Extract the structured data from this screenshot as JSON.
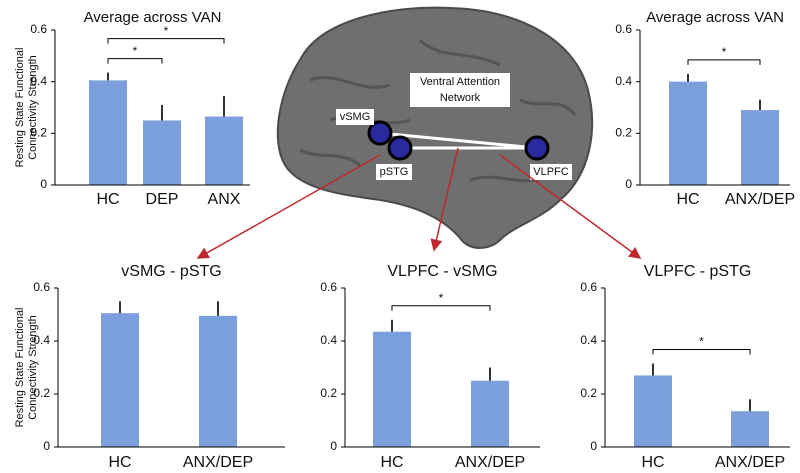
{
  "chart_data": [
    {
      "type": "bar",
      "title": "Average across VAN",
      "ylabel": [
        "Resting State Functional",
        "Connectivity Strength"
      ],
      "categories": [
        "HC",
        "DEP",
        "ANX"
      ],
      "values": [
        0.405,
        0.25,
        0.265
      ],
      "errors": [
        0.03,
        0.06,
        0.08
      ],
      "color": "#7b9fdd",
      "ylim": [
        0,
        0.6
      ],
      "yticks": [
        0,
        0.2,
        0.4,
        0.6
      ],
      "annotations": [
        {
          "text": "*",
          "from": "HC",
          "to": "DEP"
        },
        {
          "text": "*",
          "from": "HC",
          "to": "ANX"
        }
      ]
    },
    {
      "type": "bar",
      "title": "Average across VAN",
      "categories": [
        "HC",
        "ANX/DEP"
      ],
      "values": [
        0.4,
        0.29
      ],
      "errors": [
        0.03,
        0.04
      ],
      "color": "#7b9fdd",
      "ylim": [
        0,
        0.6
      ],
      "yticks": [
        0,
        0.2,
        0.4,
        0.6
      ],
      "annotations": [
        {
          "text": "*",
          "from": "HC",
          "to": "ANX/DEP"
        }
      ]
    },
    {
      "type": "bar",
      "title": "vSMG - pSTG",
      "ylabel": [
        "Resting State Functional",
        "Connectivity Strength"
      ],
      "categories": [
        "HC",
        "ANX/DEP"
      ],
      "values": [
        0.505,
        0.495
      ],
      "errors": [
        0.045,
        0.055
      ],
      "color": "#7b9fdd",
      "ylim": [
        0,
        0.6
      ],
      "yticks": [
        0,
        0.2,
        0.4,
        0.6
      ]
    },
    {
      "type": "bar",
      "title": "VLPFC - vSMG",
      "categories": [
        "HC",
        "ANX/DEP"
      ],
      "values": [
        0.435,
        0.25
      ],
      "errors": [
        0.045,
        0.05
      ],
      "color": "#7b9fdd",
      "ylim": [
        0,
        0.6
      ],
      "yticks": [
        0,
        0.2,
        0.4,
        0.6
      ],
      "annotations": [
        {
          "text": "*",
          "from": "HC",
          "to": "ANX/DEP"
        }
      ]
    },
    {
      "type": "bar",
      "title": "VLPFC - pSTG",
      "categories": [
        "HC",
        "ANX/DEP"
      ],
      "values": [
        0.27,
        0.135
      ],
      "errors": [
        0.045,
        0.045
      ],
      "color": "#7b9fdd",
      "ylim": [
        0,
        0.6
      ],
      "yticks": [
        0,
        0.2,
        0.4,
        0.6
      ],
      "annotations": [
        {
          "text": "*",
          "from": "HC",
          "to": "ANX/DEP"
        }
      ]
    }
  ],
  "diagram": {
    "network": [
      "Ventral Attention",
      "Network"
    ],
    "nodes": [
      "vSMG",
      "pSTG",
      "VLPFC"
    ]
  }
}
